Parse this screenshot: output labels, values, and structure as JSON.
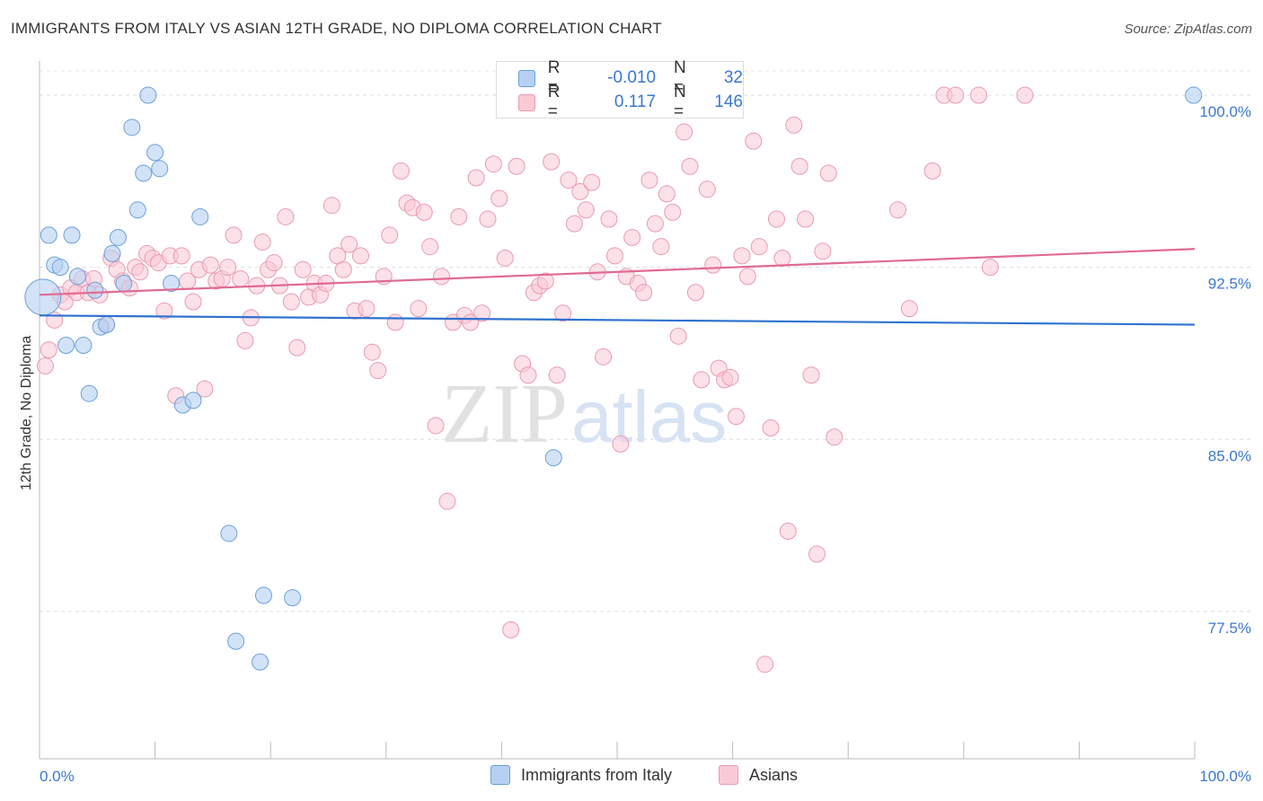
{
  "chart_data": {
    "type": "scatter",
    "title": "IMMIGRANTS FROM ITALY VS ASIAN 12TH GRADE, NO DIPLOMA CORRELATION CHART",
    "source": "Source: ZipAtlas.com",
    "xlabel": "",
    "ylabel": "12th Grade, No Diploma",
    "xlim": [
      0,
      100
    ],
    "ylim": [
      71.0,
      101.5
    ],
    "x_tick_labels": [
      "0.0%",
      "100.0%"
    ],
    "y_ticks": [
      77.5,
      85.0,
      92.5,
      100.0
    ],
    "y_tick_labels": [
      "77.5%",
      "85.0%",
      "92.5%",
      "100.0%"
    ],
    "grid": true,
    "watermark": "ZIPatlas",
    "legend": {
      "r_label": "R =",
      "n_label": "N =",
      "entries": [
        {
          "name": "Immigrants from Italy",
          "r": "-0.010",
          "n": "32"
        },
        {
          "name": "Asians",
          "r": "0.117",
          "n": "146"
        }
      ]
    },
    "colors": {
      "italy_fill": "#b6d0f2",
      "italy_stroke": "#6a9fdc",
      "italy_line": "#2f72d0",
      "asian_fill": "#f9c9d6",
      "asian_stroke": "#ea9ab1",
      "asian_line": "#e06a93"
    },
    "series": [
      {
        "name": "Immigrants from Italy",
        "trend": {
          "x": [
            0,
            100
          ],
          "y": [
            90.4,
            90.0
          ]
        },
        "points": [
          [
            0.3,
            91.2
          ],
          [
            0.8,
            93.9
          ],
          [
            1.3,
            92.6
          ],
          [
            1.8,
            92.5
          ],
          [
            2.3,
            89.1
          ],
          [
            2.8,
            93.9
          ],
          [
            3.3,
            92.1
          ],
          [
            3.8,
            89.1
          ],
          [
            4.3,
            87.0
          ],
          [
            4.8,
            91.5
          ],
          [
            5.3,
            89.9
          ],
          [
            5.8,
            90.0
          ],
          [
            6.3,
            93.1
          ],
          [
            6.8,
            93.8
          ],
          [
            7.3,
            91.8
          ],
          [
            8.0,
            98.6
          ],
          [
            8.5,
            95.0
          ],
          [
            9.0,
            96.6
          ],
          [
            9.4,
            100.0
          ],
          [
            10.0,
            97.5
          ],
          [
            10.4,
            96.8
          ],
          [
            11.4,
            91.8
          ],
          [
            12.4,
            86.5
          ],
          [
            13.3,
            86.7
          ],
          [
            13.9,
            94.7
          ],
          [
            16.4,
            80.9
          ],
          [
            17.0,
            76.2
          ],
          [
            19.1,
            75.3
          ],
          [
            19.4,
            78.2
          ],
          [
            21.9,
            78.1
          ],
          [
            44.5,
            84.2
          ],
          [
            99.9,
            100.0
          ]
        ]
      },
      {
        "name": "Asians",
        "trend": {
          "x": [
            0,
            100
          ],
          "y": [
            91.3,
            93.3
          ]
        },
        "points": [
          [
            0.5,
            88.2
          ],
          [
            0.8,
            88.9
          ],
          [
            1.3,
            90.2
          ],
          [
            1.8,
            91.3
          ],
          [
            2.2,
            91.0
          ],
          [
            2.7,
            91.6
          ],
          [
            3.2,
            91.4
          ],
          [
            3.7,
            92.0
          ],
          [
            4.2,
            91.4
          ],
          [
            4.7,
            92.0
          ],
          [
            5.2,
            91.3
          ],
          [
            5.8,
            90.0
          ],
          [
            6.2,
            92.9
          ],
          [
            6.7,
            92.4
          ],
          [
            7.2,
            91.9
          ],
          [
            7.8,
            91.6
          ],
          [
            8.3,
            92.5
          ],
          [
            8.7,
            92.3
          ],
          [
            9.3,
            93.1
          ],
          [
            9.8,
            92.9
          ],
          [
            10.3,
            92.7
          ],
          [
            10.8,
            90.6
          ],
          [
            11.3,
            93.0
          ],
          [
            11.8,
            86.9
          ],
          [
            12.3,
            93.0
          ],
          [
            12.8,
            91.9
          ],
          [
            13.3,
            91.0
          ],
          [
            13.8,
            92.4
          ],
          [
            14.3,
            87.2
          ],
          [
            14.8,
            92.6
          ],
          [
            15.3,
            91.9
          ],
          [
            15.8,
            92.0
          ],
          [
            16.3,
            92.5
          ],
          [
            16.8,
            93.9
          ],
          [
            17.4,
            92.0
          ],
          [
            17.8,
            89.3
          ],
          [
            18.3,
            90.3
          ],
          [
            18.8,
            91.7
          ],
          [
            19.3,
            93.6
          ],
          [
            19.8,
            92.4
          ],
          [
            20.3,
            92.7
          ],
          [
            20.8,
            91.7
          ],
          [
            21.3,
            94.7
          ],
          [
            21.8,
            91.0
          ],
          [
            22.3,
            89.0
          ],
          [
            22.8,
            92.4
          ],
          [
            23.3,
            91.2
          ],
          [
            23.8,
            91.8
          ],
          [
            24.3,
            91.3
          ],
          [
            24.8,
            91.8
          ],
          [
            25.3,
            95.2
          ],
          [
            25.8,
            93.0
          ],
          [
            26.3,
            92.4
          ],
          [
            26.8,
            93.5
          ],
          [
            27.3,
            90.6
          ],
          [
            27.8,
            93.0
          ],
          [
            28.3,
            90.7
          ],
          [
            28.8,
            88.8
          ],
          [
            29.3,
            88.0
          ],
          [
            29.8,
            92.1
          ],
          [
            30.3,
            93.9
          ],
          [
            30.8,
            90.1
          ],
          [
            31.3,
            96.7
          ],
          [
            31.8,
            95.3
          ],
          [
            32.3,
            95.1
          ],
          [
            32.8,
            90.7
          ],
          [
            33.3,
            94.9
          ],
          [
            33.8,
            93.4
          ],
          [
            34.3,
            85.6
          ],
          [
            34.8,
            92.1
          ],
          [
            35.3,
            82.3
          ],
          [
            35.8,
            90.1
          ],
          [
            36.3,
            94.7
          ],
          [
            36.8,
            90.4
          ],
          [
            37.3,
            90.1
          ],
          [
            37.8,
            96.4
          ],
          [
            38.3,
            90.5
          ],
          [
            38.8,
            94.6
          ],
          [
            39.3,
            97.0
          ],
          [
            39.8,
            95.5
          ],
          [
            40.3,
            92.9
          ],
          [
            40.8,
            76.7
          ],
          [
            41.3,
            96.9
          ],
          [
            41.8,
            88.3
          ],
          [
            42.3,
            87.8
          ],
          [
            42.8,
            91.4
          ],
          [
            43.3,
            91.7
          ],
          [
            43.8,
            91.9
          ],
          [
            44.3,
            97.1
          ],
          [
            44.8,
            87.8
          ],
          [
            45.3,
            90.5
          ],
          [
            45.8,
            96.3
          ],
          [
            46.3,
            94.4
          ],
          [
            46.8,
            95.8
          ],
          [
            47.3,
            95.0
          ],
          [
            47.8,
            96.2
          ],
          [
            48.3,
            92.3
          ],
          [
            48.8,
            88.6
          ],
          [
            49.3,
            94.6
          ],
          [
            49.8,
            93.0
          ],
          [
            50.3,
            84.8
          ],
          [
            50.8,
            92.1
          ],
          [
            51.3,
            93.8
          ],
          [
            51.8,
            91.8
          ],
          [
            52.3,
            91.4
          ],
          [
            52.8,
            96.3
          ],
          [
            53.3,
            94.4
          ],
          [
            53.8,
            93.4
          ],
          [
            54.3,
            95.7
          ],
          [
            54.8,
            94.9
          ],
          [
            55.3,
            89.5
          ],
          [
            55.8,
            98.4
          ],
          [
            56.3,
            96.9
          ],
          [
            56.8,
            91.4
          ],
          [
            57.3,
            87.6
          ],
          [
            57.8,
            95.9
          ],
          [
            58.3,
            92.6
          ],
          [
            58.8,
            88.1
          ],
          [
            59.3,
            87.6
          ],
          [
            59.8,
            87.7
          ],
          [
            60.3,
            86.0
          ],
          [
            60.8,
            93.0
          ],
          [
            61.3,
            92.1
          ],
          [
            61.8,
            98.0
          ],
          [
            62.3,
            93.4
          ],
          [
            62.8,
            75.2
          ],
          [
            63.3,
            85.5
          ],
          [
            63.8,
            94.6
          ],
          [
            64.3,
            92.9
          ],
          [
            64.8,
            81.0
          ],
          [
            65.3,
            98.7
          ],
          [
            65.8,
            96.9
          ],
          [
            66.3,
            94.6
          ],
          [
            66.8,
            87.8
          ],
          [
            67.3,
            80.0
          ],
          [
            67.8,
            93.2
          ],
          [
            68.3,
            96.6
          ],
          [
            68.8,
            85.1
          ],
          [
            74.3,
            95.0
          ],
          [
            75.3,
            90.7
          ],
          [
            77.3,
            96.7
          ],
          [
            78.3,
            100.0
          ],
          [
            79.3,
            100.0
          ],
          [
            81.3,
            100.0
          ],
          [
            85.3,
            100.0
          ],
          [
            82.3,
            92.5
          ]
        ]
      }
    ]
  }
}
